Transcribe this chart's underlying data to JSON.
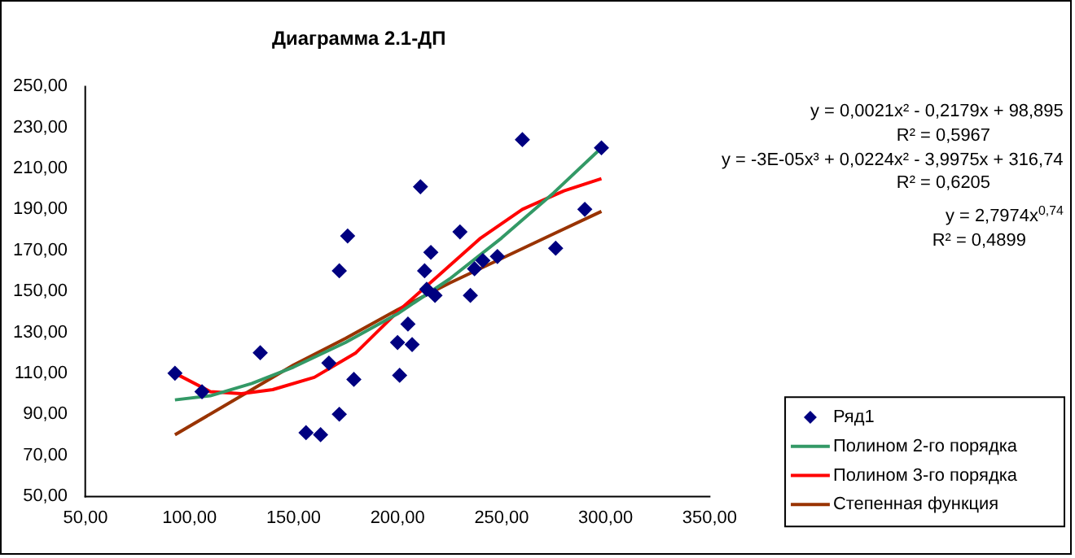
{
  "chart_data": {
    "type": "scatter",
    "title": "Диаграмма 2.1-ДП",
    "xlim": [
      50,
      350
    ],
    "xticks": [
      {
        "value": 50,
        "label": "50,00"
      },
      {
        "value": 100,
        "label": "100,00"
      },
      {
        "value": 150,
        "label": "150,00"
      },
      {
        "value": 200,
        "label": "200,00"
      },
      {
        "value": 250,
        "label": "250,00"
      },
      {
        "value": 300,
        "label": "300,00"
      },
      {
        "value": 350,
        "label": "350,00"
      }
    ],
    "ylim": [
      50,
      250
    ],
    "yticks": [
      {
        "value": 50,
        "label": "50,00"
      },
      {
        "value": 70,
        "label": "70,00"
      },
      {
        "value": 90,
        "label": "90,00"
      },
      {
        "value": 110,
        "label": "110,00"
      },
      {
        "value": 130,
        "label": "130,00"
      },
      {
        "value": 150,
        "label": "150,00"
      },
      {
        "value": 170,
        "label": "170,00"
      },
      {
        "value": 190,
        "label": "190,00"
      },
      {
        "value": 210,
        "label": "210,00"
      },
      {
        "value": 230,
        "label": "230,00"
      },
      {
        "value": 250,
        "label": "250,00"
      }
    ],
    "grid": false,
    "legend": "bottom right",
    "marker": "diamond",
    "annotations": [
      "y = 0,0021x² - 0,2179x + 98,895",
      "R² = 0,5967",
      "y = -3E-05x³ + 0,0224x² - 3,9975x + 316,74",
      "R² = 0,6205",
      "y = 2,7974x$^{0,74}$",
      "R² = 0,4899"
    ],
    "series": [
      {
        "name": "Ряд1",
        "color": "#000080",
        "x": [
          93,
          106,
          134,
          156,
          163,
          167,
          172,
          172,
          176,
          179,
          200,
          201,
          205,
          207,
          211,
          213,
          214,
          216,
          218,
          230,
          235,
          237,
          241,
          248,
          260,
          276,
          290,
          298
        ],
        "values": [
          110,
          101,
          120,
          81,
          80,
          115,
          90,
          160,
          177,
          107,
          125,
          109,
          134,
          124,
          201,
          160,
          151,
          169,
          148,
          179,
          148,
          161,
          165,
          167,
          224,
          171,
          190,
          220
        ]
      },
      {
        "name": "Полином 2-го порядка",
        "type": "line",
        "marker": "none",
        "color": "#339966",
        "x": [
          93,
          110,
          130,
          150,
          175,
          200,
          225,
          250,
          275,
          298
        ],
        "values": [
          97,
          99,
          105,
          113,
          125,
          139,
          156,
          176,
          198,
          220
        ]
      },
      {
        "name": "Полином 3-го порядка",
        "type": "line",
        "marker": "none",
        "color": "#ff0000",
        "x": [
          93,
          110,
          125,
          140,
          160,
          180,
          200,
          220,
          240,
          260,
          280,
          298
        ],
        "values": [
          110,
          101,
          100,
          102,
          108,
          120,
          140,
          158,
          176,
          190,
          199,
          205
        ]
      },
      {
        "name": "Степенная функция",
        "type": "line",
        "marker": "none",
        "color": "#993300",
        "x": [
          93,
          125,
          150,
          175,
          200,
          225,
          250,
          275,
          298
        ],
        "values": [
          80,
          99,
          114,
          127,
          141,
          154,
          166,
          178,
          189
        ]
      }
    ]
  }
}
